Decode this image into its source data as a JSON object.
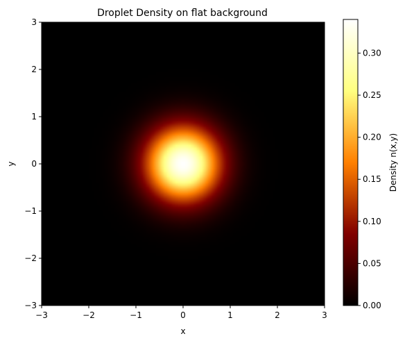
{
  "chart_data": {
    "type": "heatmap",
    "title": "Droplet Density on flat background",
    "xlabel": "x",
    "ylabel": "y",
    "xlim": [
      -3,
      3
    ],
    "ylim": [
      -3,
      3
    ],
    "x_ticks": [
      -3,
      -2,
      -1,
      0,
      1,
      2,
      3
    ],
    "y_ticks": [
      -3,
      -2,
      -1,
      0,
      1,
      2,
      3
    ],
    "x_tick_labels": [
      "−3",
      "−2",
      "−1",
      "0",
      "1",
      "2",
      "3"
    ],
    "y_tick_labels": [
      "−3",
      "−2",
      "−1",
      "0",
      "1",
      "2",
      "3"
    ],
    "grid": false,
    "colormap": "afmhot",
    "density": {
      "center": [
        0,
        0
      ],
      "peak": 0.34,
      "gaussian_sigma": 0.55,
      "grid_points": 100
    },
    "colorbar": {
      "label": "Density n(x,y)",
      "range": [
        0,
        0.34
      ],
      "ticks": [
        0.0,
        0.05,
        0.1,
        0.15,
        0.2,
        0.25,
        0.3
      ],
      "tick_labels": [
        "0.00",
        "0.05",
        "0.10",
        "0.15",
        "0.20",
        "0.25",
        "0.30"
      ]
    }
  }
}
